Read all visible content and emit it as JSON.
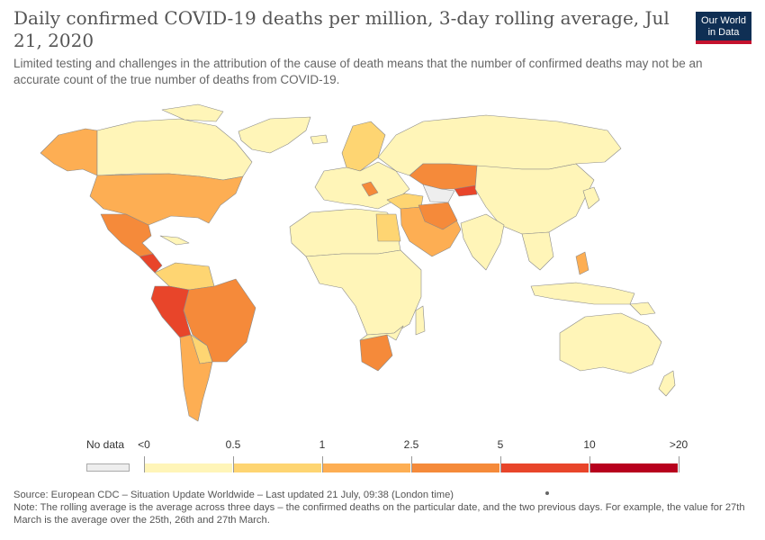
{
  "title": "Daily confirmed COVID-19 deaths per million, 3-day rolling average, Jul 21, 2020",
  "subtitle": "Limited testing and challenges in the attribution of the cause of death means that the number of confirmed deaths may not be an accurate count of the true number of deaths from COVID-19.",
  "logo": {
    "line1": "Our World",
    "line2": "in Data"
  },
  "legend": {
    "no_data_label": "No data",
    "no_data_color": "#eeeeee",
    "labels": [
      "<0",
      "0.5",
      "1",
      "2.5",
      "5",
      "10",
      ">20"
    ],
    "bins": [
      {
        "color": "#fff5b8"
      },
      {
        "color": "#fed572"
      },
      {
        "color": "#fdae53"
      },
      {
        "color": "#f58a3a"
      },
      {
        "color": "#e8452a"
      },
      {
        "color": "#b7001d"
      }
    ]
  },
  "source": "Source: European CDC – Situation Update Worldwide – Last updated 21 July, 09:38 (London time)",
  "note": "Note: The rolling average is the average across three days – the confirmed deaths on the particular date, and the two previous days. For example, the value for 27th March is the average over the 25th, 26th and 27th March.",
  "colors": {
    "ocean": "#ffffff",
    "border": "#8a8a8a",
    "lowest": "#fff5b8",
    "low": "#fed572",
    "mid": "#fdae53",
    "high": "#f58a3a",
    "very_high": "#e8452a",
    "highest": "#b7001d",
    "no_data": "#eeeeee"
  }
}
